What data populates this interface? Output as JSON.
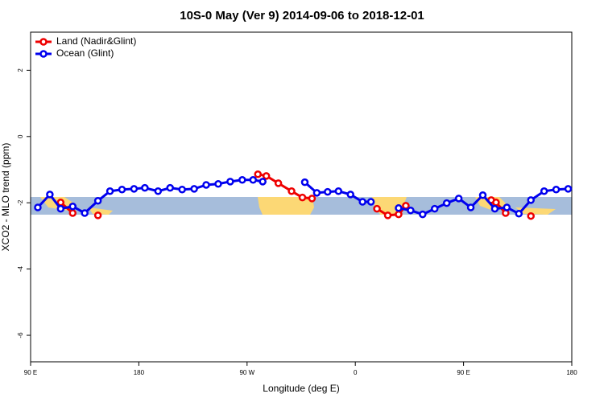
{
  "chart_data": {
    "type": "line",
    "title": "10S-0 May (Ver 9)   2014-09-06 to 2018-12-01",
    "x_label": "Longitude (deg E)",
    "y_label": "XCO2 - MLO trend (ppm)",
    "xlim": [
      90,
      540
    ],
    "ylim": [
      -6.8,
      3.15
    ],
    "xticks": [
      {
        "value": 90,
        "label": "90 E"
      },
      {
        "value": 180,
        "label": "180"
      },
      {
        "value": 270,
        "label": "90 W"
      },
      {
        "value": 360,
        "label": "0"
      },
      {
        "value": 450,
        "label": "90 E"
      },
      {
        "value": 540,
        "label": "180"
      }
    ],
    "yticks": [
      2,
      0,
      -2,
      -4,
      -6
    ],
    "legend": "top-left",
    "series": [
      {
        "name": "Land (Nadir&Glint)",
        "color": "#ee0000",
        "x": [
          115,
          125,
          135,
          146,
          200,
          279,
          286,
          296,
          307,
          316,
          324,
          350,
          378,
          387,
          396,
          402,
          440,
          473,
          477,
          485,
          495,
          506
        ],
        "values": [
          -1.99,
          -2.31,
          null,
          -2.38,
          null,
          -1.14,
          -1.19,
          -1.41,
          -1.65,
          -1.84,
          -1.87,
          null,
          -2.18,
          -2.38,
          -2.35,
          -2.09,
          null,
          -1.92,
          -1.99,
          -2.31,
          null,
          -2.4
        ]
      },
      {
        "name": "Ocean (Glint)",
        "color": "#0000ee",
        "x": [
          96,
          106,
          115,
          125,
          135,
          146,
          156,
          166,
          176,
          185,
          196,
          206,
          216,
          226,
          236,
          246,
          256,
          266,
          275,
          283,
          300,
          318,
          328,
          337,
          346,
          356,
          366,
          373,
          385,
          396,
          406,
          416,
          426,
          436,
          446,
          456,
          466,
          476,
          486,
          496,
          506,
          517,
          527,
          537
        ],
        "values": [
          -2.14,
          -1.75,
          -2.18,
          -2.11,
          -2.31,
          -1.94,
          -1.65,
          -1.6,
          -1.58,
          -1.55,
          -1.65,
          -1.55,
          -1.6,
          -1.58,
          -1.46,
          -1.43,
          -1.36,
          -1.31,
          -1.31,
          -1.36,
          null,
          -1.38,
          -1.7,
          -1.67,
          -1.65,
          -1.75,
          -1.97,
          -1.97,
          null,
          -2.16,
          -2.23,
          -2.35,
          -2.18,
          -2.01,
          -1.87,
          -2.14,
          -1.77,
          -2.18,
          -2.14,
          -2.33,
          -1.92,
          -1.65,
          -1.6,
          -1.58
        ]
      }
    ]
  }
}
